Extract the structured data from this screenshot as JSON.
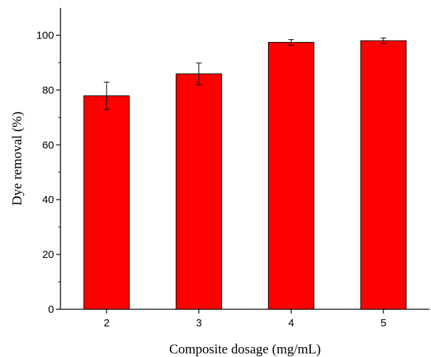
{
  "chart_data": {
    "type": "bar",
    "title": "",
    "xlabel": "Composite dosage (mg/mL)",
    "ylabel": "Dye removal (%)",
    "categories": [
      "2",
      "3",
      "4",
      "5"
    ],
    "values": [
      77.9,
      85.9,
      97.4,
      98.0
    ],
    "errors": [
      5.0,
      4.0,
      1.0,
      1.0
    ],
    "ylim": [
      0,
      110
    ],
    "yticks": [
      0,
      20,
      40,
      60,
      80,
      100
    ],
    "yticks_labels": [
      "0",
      "20",
      "40",
      "60",
      "80",
      "100"
    ],
    "bar_color": "#ff0000",
    "grid": false,
    "legend": "none"
  }
}
